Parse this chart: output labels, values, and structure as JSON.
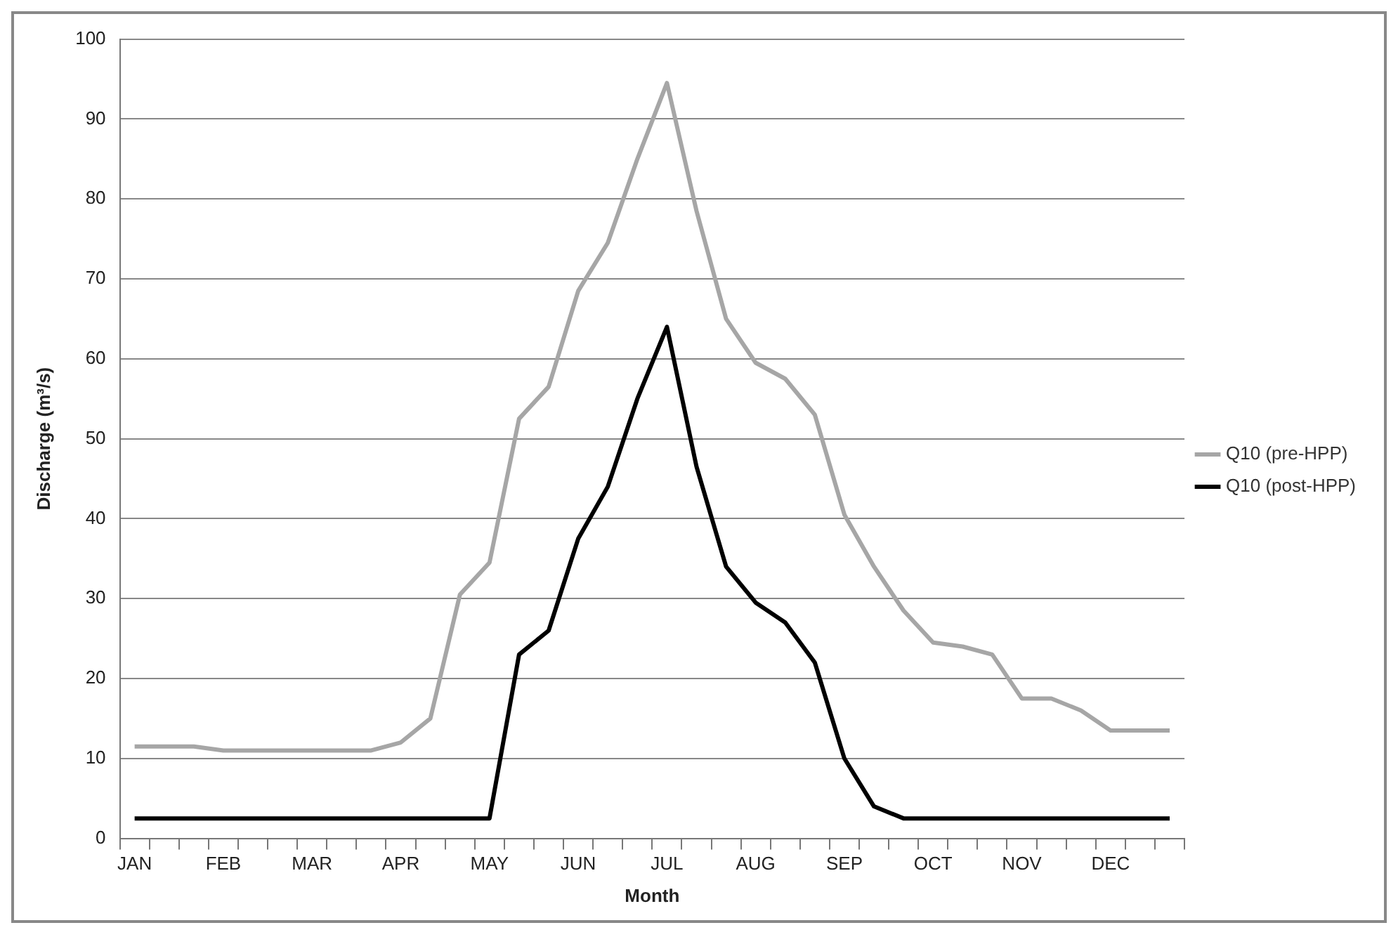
{
  "chart_data": {
    "type": "line",
    "xlabel": "Month",
    "ylabel": "Discharge (m³/s)",
    "categories": [
      "JAN",
      null,
      null,
      "FEB",
      null,
      null,
      "MAR",
      null,
      null,
      "APR",
      null,
      null,
      "MAY",
      null,
      null,
      "JUN",
      null,
      null,
      "JUL",
      null,
      null,
      "AUG",
      null,
      null,
      "SEP",
      null,
      null,
      "OCT",
      null,
      null,
      "NOV",
      null,
      null,
      "DEC",
      null,
      null
    ],
    "series": [
      {
        "name": "Q10 (pre-HPP)",
        "color": "#a6a6a6",
        "values": [
          11.5,
          11.5,
          11.5,
          11,
          11,
          11,
          11,
          11,
          11,
          12,
          15,
          30.5,
          34.5,
          52.5,
          56.5,
          68.5,
          74.5,
          85,
          94.5,
          78.5,
          65,
          59.5,
          57.5,
          53,
          40.5,
          34,
          28.5,
          24.5,
          24,
          23,
          17.5,
          17.5,
          16,
          13.5,
          13.5,
          13.5
        ]
      },
      {
        "name": "Q10 (post-HPP)",
        "color": "#000000",
        "values": [
          2.5,
          2.5,
          2.5,
          2.5,
          2.5,
          2.5,
          2.5,
          2.5,
          2.5,
          2.5,
          2.5,
          2.5,
          2.5,
          23,
          26,
          37.5,
          44,
          55,
          64,
          46.5,
          34,
          29.5,
          27,
          22,
          10,
          4,
          2.5,
          2.5,
          2.5,
          2.5,
          2.5,
          2.5,
          2.5,
          2.5,
          2.5,
          2.5
        ]
      }
    ],
    "ylim": [
      0,
      100
    ],
    "yticks": [
      0,
      10,
      20,
      30,
      40,
      50,
      60,
      70,
      80,
      90,
      100
    ],
    "grid": "y",
    "legend": "right",
    "marker": "none",
    "line_style": "solid"
  }
}
